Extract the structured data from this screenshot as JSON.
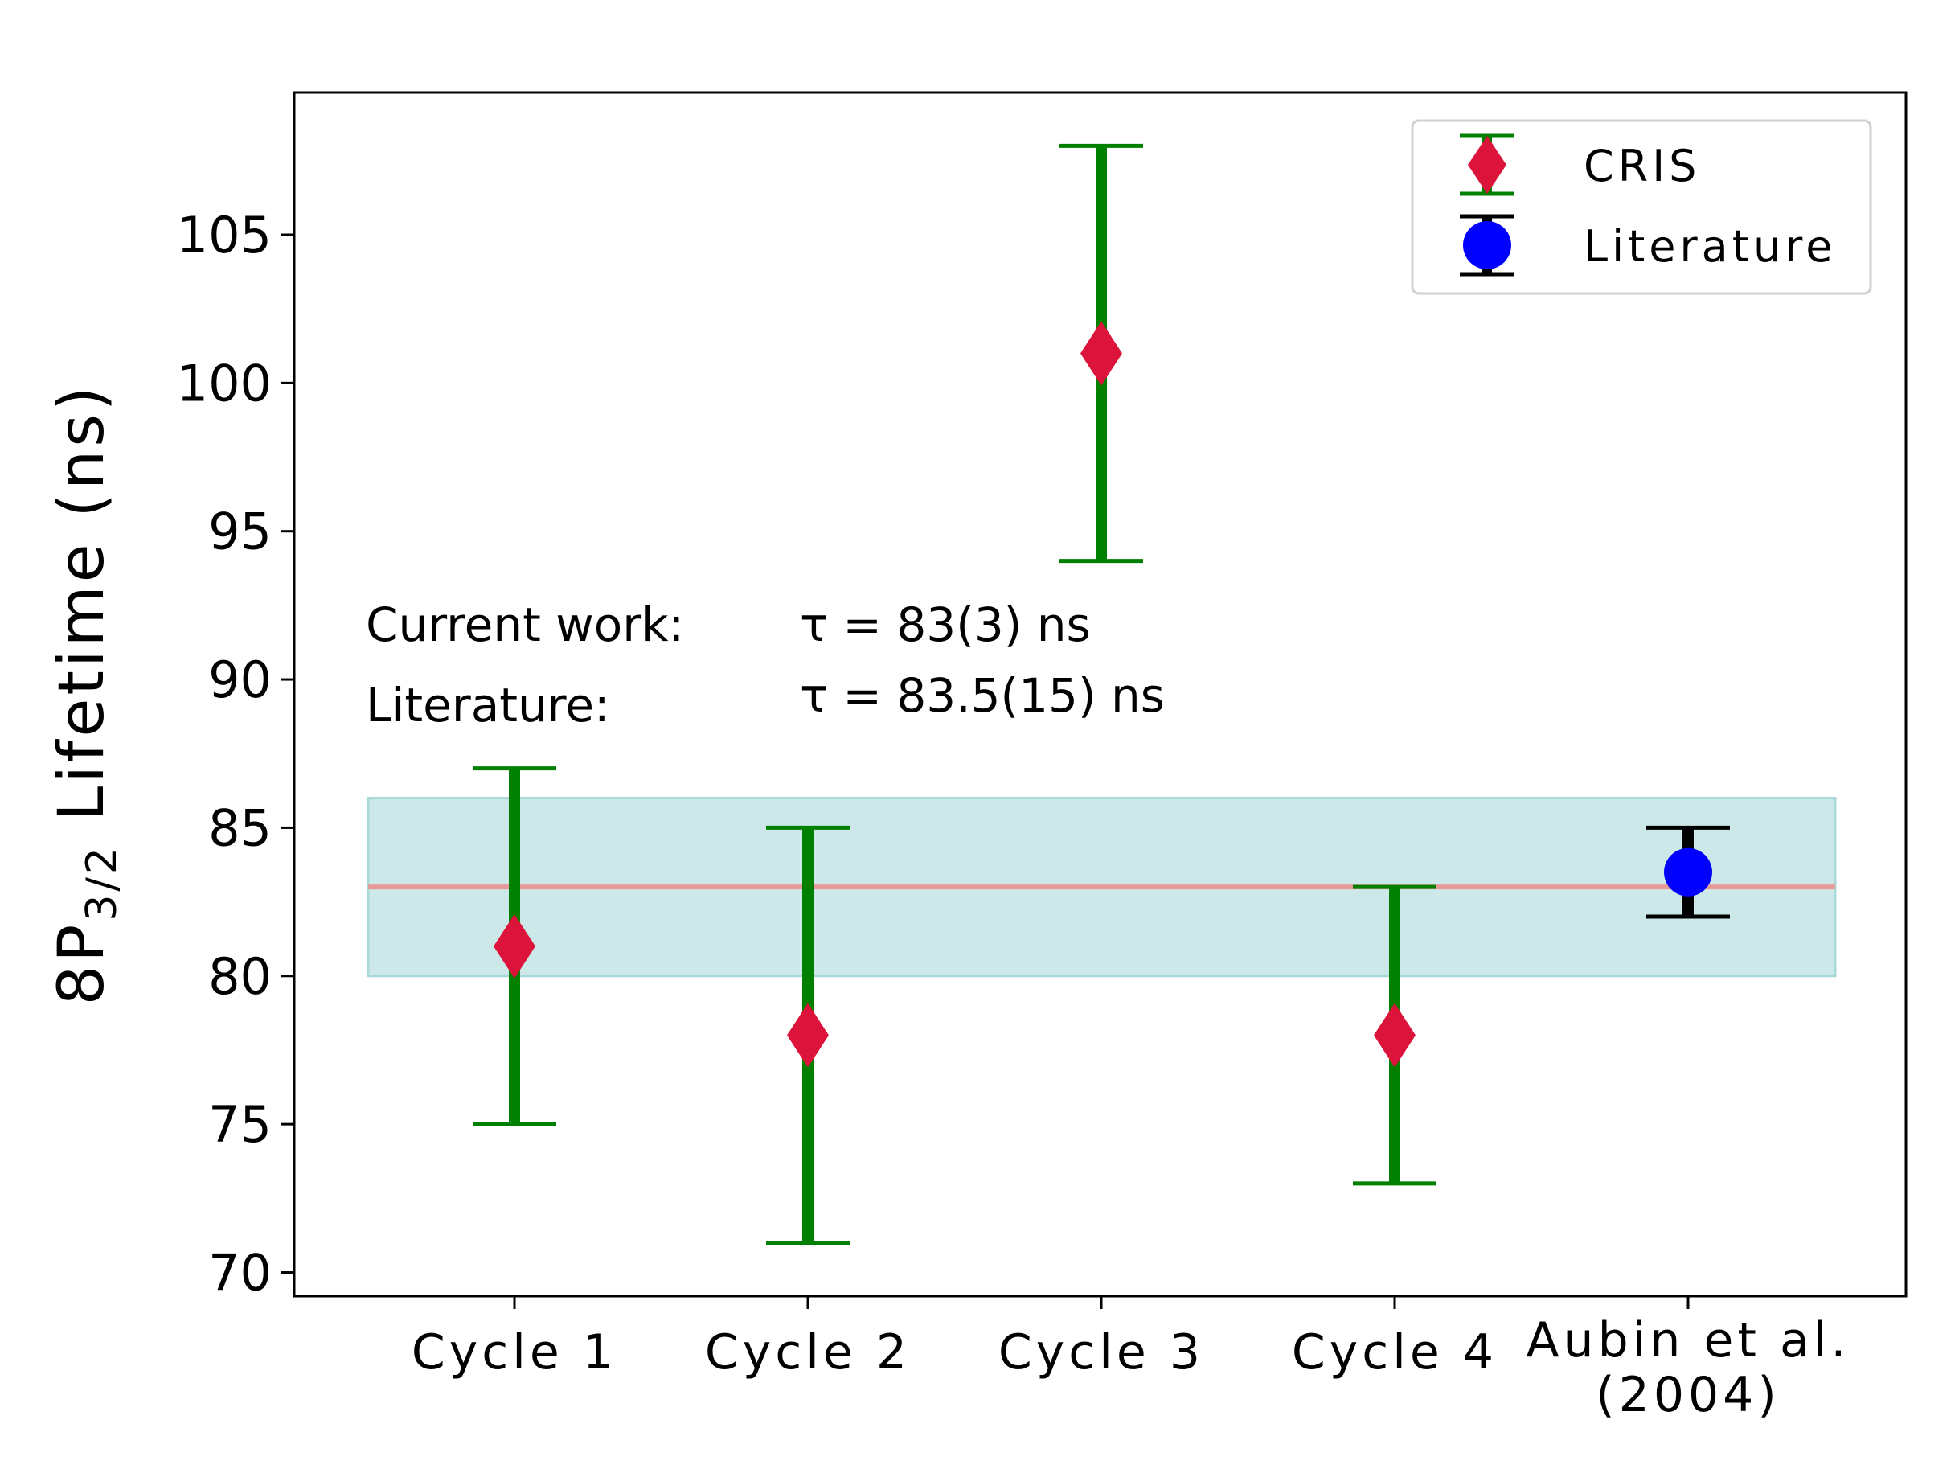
{
  "chart_data": {
    "type": "errorbar",
    "ylabel_main": "8P",
    "ylabel_subscript": "3/2",
    "ylabel_rest": " Lifetime (ns)",
    "xlabel": "",
    "ylim": [
      69.2,
      109.8
    ],
    "yticks": [
      70,
      75,
      80,
      85,
      90,
      95,
      100,
      105
    ],
    "categories": [
      {
        "lines": [
          "Cycle 1"
        ]
      },
      {
        "lines": [
          "Cycle 2"
        ]
      },
      {
        "lines": [
          "Cycle 3"
        ]
      },
      {
        "lines": [
          "Cycle 4"
        ]
      },
      {
        "lines": [
          "Aubin et al.",
          "(2004)"
        ]
      }
    ],
    "series": [
      {
        "name": "CRIS",
        "marker": "diamond",
        "marker_color": "#dc143c",
        "errorbar_color": "#007f00",
        "points": [
          {
            "category": 0,
            "y": 81,
            "lower": 75,
            "upper": 87
          },
          {
            "category": 1,
            "y": 78,
            "lower": 71,
            "upper": 85
          },
          {
            "category": 2,
            "y": 101,
            "lower": 94,
            "upper": 108
          },
          {
            "category": 3,
            "y": 78,
            "lower": 73,
            "upper": 83
          }
        ]
      },
      {
        "name": "Literature",
        "marker": "circle",
        "marker_color": "#0000ff",
        "errorbar_color": "#000000",
        "points": [
          {
            "category": 4,
            "y": 83.5,
            "lower": 82,
            "upper": 85
          }
        ]
      }
    ],
    "band": {
      "y_low": 80,
      "y_high": 86,
      "color": "#cde8e8",
      "edge_color": "#a8d8d8"
    },
    "hline": {
      "y": 83,
      "color": "#e89a9a"
    },
    "legend_position": "top-right",
    "annotations": [
      {
        "label": "Current work:",
        "value": "τ = 83(3) ns"
      },
      {
        "label": "Literature:",
        "value": "τ = 83.5(15) ns"
      }
    ]
  }
}
